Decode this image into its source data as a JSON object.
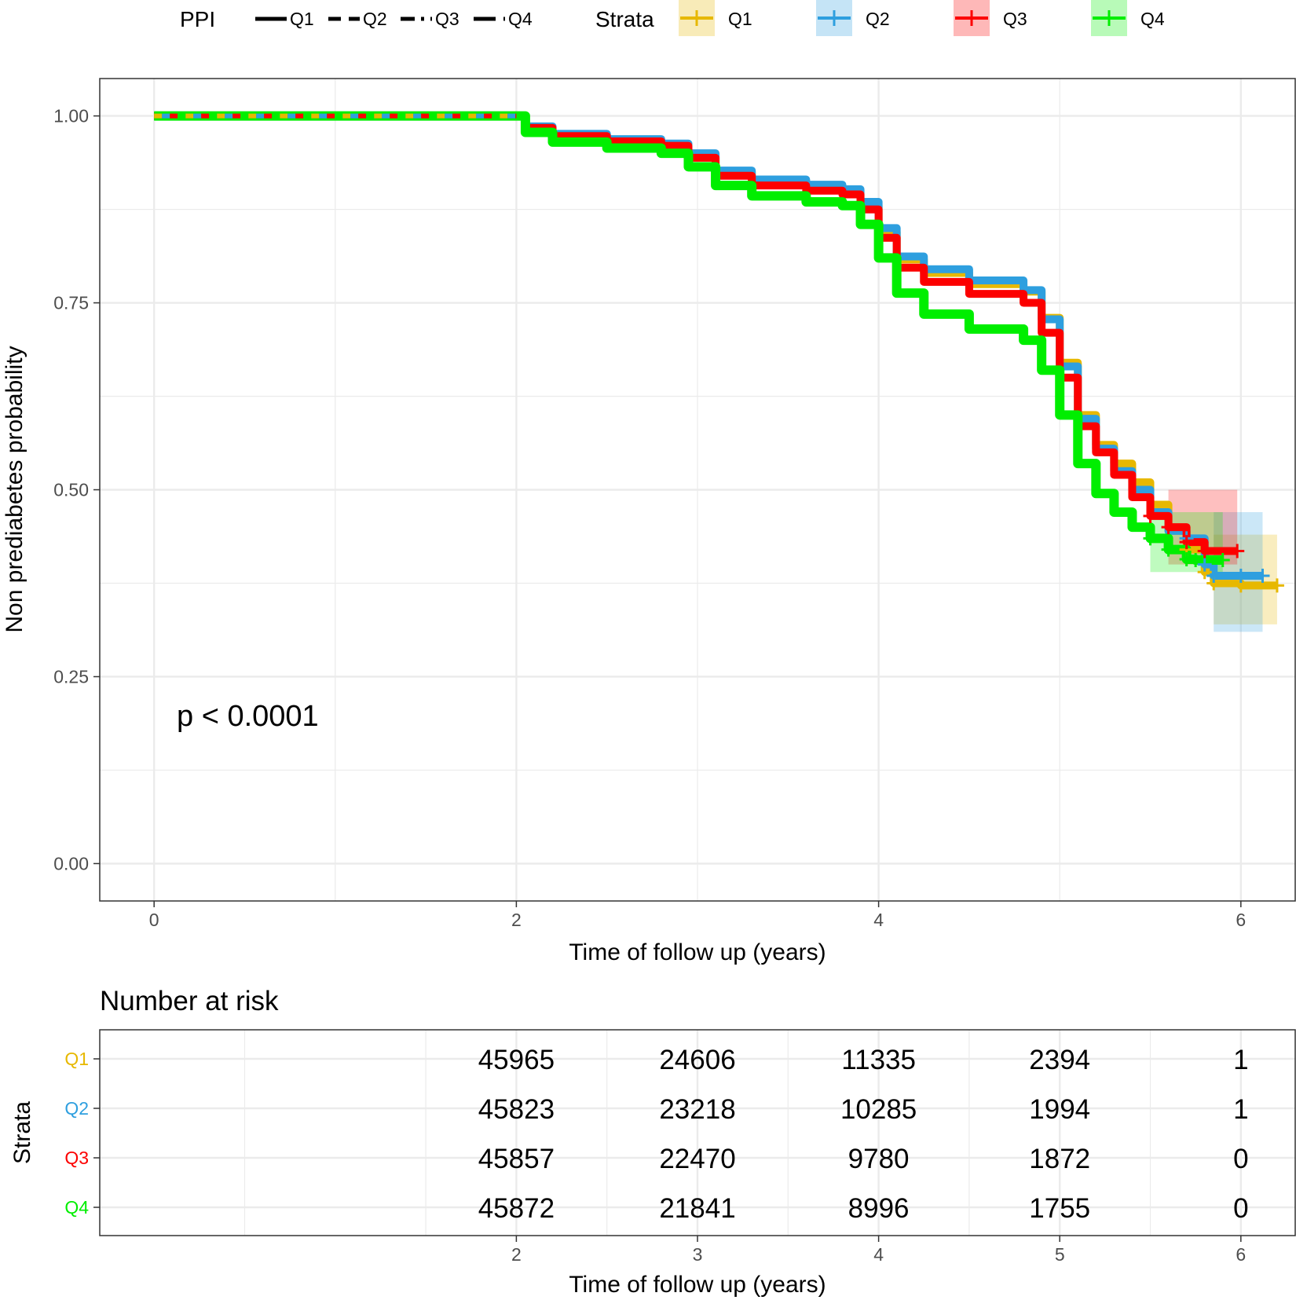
{
  "colors": {
    "Q1": "#e7b800",
    "Q2": "#2e9fdf",
    "Q3": "#fc0000",
    "Q4": "#00ee00",
    "grid": "#ebebeb",
    "axis": "#4d4d4d",
    "frame": "#333333"
  },
  "legend": {
    "linetype_title": "PPI",
    "linetype_items": [
      "Q1",
      "Q2",
      "Q3",
      "Q4"
    ],
    "color_title": "Strata",
    "color_items": [
      "Q1",
      "Q2",
      "Q3",
      "Q4"
    ]
  },
  "annotation": {
    "pvalue": "p < 0.0001"
  },
  "chart_data": [
    {
      "type": "line",
      "subtype": "kaplan-meier",
      "title": "",
      "xlabel": "Time of follow up (years)",
      "ylabel": "Non prediabetes probability",
      "xlim": [
        -0.3,
        6.3
      ],
      "ylim": [
        -0.05,
        1.05
      ],
      "xticks": [
        0,
        2,
        4,
        6
      ],
      "xtick_labels": [
        "0",
        "2",
        "4",
        "6"
      ],
      "yticks": [
        0,
        0.25,
        0.5,
        0.75,
        1.0
      ],
      "ytick_labels": [
        "0.00",
        "0.25",
        "0.50",
        "0.75",
        "1.00"
      ],
      "grid": true,
      "series": [
        {
          "name": "Q1",
          "linetype": "solid",
          "x": [
            0,
            2.0,
            2.05,
            2.2,
            2.5,
            2.8,
            2.95,
            3.1,
            3.3,
            3.6,
            3.8,
            3.9,
            4.0,
            4.1,
            4.25,
            4.5,
            4.8,
            4.9,
            5.0,
            5.1,
            5.2,
            5.3,
            5.4,
            5.5,
            5.6,
            5.7,
            5.8,
            5.85,
            6.0,
            6.2
          ],
          "y": [
            1.0,
            1.0,
            0.985,
            0.975,
            0.968,
            0.962,
            0.948,
            0.925,
            0.913,
            0.905,
            0.9,
            0.88,
            0.845,
            0.808,
            0.79,
            0.775,
            0.765,
            0.73,
            0.67,
            0.6,
            0.56,
            0.535,
            0.51,
            0.48,
            0.445,
            0.42,
            0.39,
            0.375,
            0.372,
            0.372
          ],
          "ci_x": [
            5.85,
            6.2
          ],
          "ci_lower": [
            0.32,
            0.31
          ],
          "ci_upper": [
            0.44,
            0.45
          ]
        },
        {
          "name": "Q2",
          "linetype": "dashed",
          "x": [
            0,
            2.0,
            2.05,
            2.2,
            2.5,
            2.8,
            2.95,
            3.1,
            3.3,
            3.6,
            3.8,
            3.9,
            4.0,
            4.1,
            4.25,
            4.5,
            4.8,
            4.9,
            5.0,
            5.1,
            5.2,
            5.3,
            5.4,
            5.5,
            5.6,
            5.7,
            5.8,
            5.85,
            6.0,
            6.12
          ],
          "y": [
            1.0,
            1.0,
            0.986,
            0.976,
            0.969,
            0.963,
            0.95,
            0.927,
            0.915,
            0.908,
            0.902,
            0.885,
            0.85,
            0.812,
            0.795,
            0.78,
            0.767,
            0.728,
            0.665,
            0.595,
            0.555,
            0.525,
            0.5,
            0.47,
            0.445,
            0.435,
            0.4,
            0.385,
            0.385,
            0.385
          ],
          "ci_x": [
            5.85,
            6.12
          ],
          "ci_lower": [
            0.31,
            0.3
          ],
          "ci_upper": [
            0.47,
            0.48
          ]
        },
        {
          "name": "Q3",
          "linetype": "dotdash",
          "x": [
            0,
            2.0,
            2.05,
            2.2,
            2.5,
            2.8,
            2.95,
            3.1,
            3.3,
            3.6,
            3.8,
            3.9,
            4.0,
            4.1,
            4.25,
            4.5,
            4.8,
            4.9,
            5.0,
            5.1,
            5.2,
            5.3,
            5.4,
            5.5,
            5.6,
            5.7,
            5.8,
            5.98
          ],
          "y": [
            1.0,
            1.0,
            0.984,
            0.973,
            0.966,
            0.96,
            0.944,
            0.92,
            0.907,
            0.9,
            0.895,
            0.875,
            0.837,
            0.797,
            0.778,
            0.762,
            0.75,
            0.71,
            0.65,
            0.585,
            0.55,
            0.52,
            0.49,
            0.465,
            0.45,
            0.43,
            0.418,
            0.418
          ],
          "ci_x": [
            5.6,
            5.98
          ],
          "ci_lower": [
            0.4,
            0.37
          ],
          "ci_upper": [
            0.5,
            0.48
          ]
        },
        {
          "name": "Q4",
          "linetype": "longdash",
          "x": [
            0,
            2.0,
            2.05,
            2.2,
            2.5,
            2.8,
            2.95,
            3.1,
            3.3,
            3.6,
            3.8,
            3.9,
            4.0,
            4.1,
            4.25,
            4.5,
            4.8,
            4.9,
            5.0,
            5.1,
            5.2,
            5.3,
            5.4,
            5.5,
            5.6,
            5.7,
            5.75,
            5.9
          ],
          "y": [
            1.0,
            1.0,
            0.978,
            0.965,
            0.957,
            0.95,
            0.932,
            0.907,
            0.893,
            0.885,
            0.88,
            0.855,
            0.81,
            0.763,
            0.735,
            0.715,
            0.7,
            0.66,
            0.6,
            0.535,
            0.495,
            0.47,
            0.45,
            0.435,
            0.42,
            0.407,
            0.406,
            0.406
          ],
          "ci_x": [
            5.5,
            5.9
          ],
          "ci_lower": [
            0.39,
            0.37
          ],
          "ci_upper": [
            0.47,
            0.45
          ]
        }
      ]
    },
    {
      "type": "table",
      "title": "Number at risk",
      "xlabel": "Time of follow up (years)",
      "ylabel": "Strata",
      "xticks": [
        2,
        3,
        4,
        5,
        6
      ],
      "xtick_labels": [
        "2",
        "3",
        "4",
        "5",
        "6"
      ],
      "row_labels": [
        "Q1",
        "Q2",
        "Q3",
        "Q4"
      ],
      "rows": [
        {
          "strata": "Q1",
          "values": [
            "45965",
            "24606",
            "11335",
            "2394",
            "1"
          ]
        },
        {
          "strata": "Q2",
          "values": [
            "45823",
            "23218",
            "10285",
            "1994",
            "1"
          ]
        },
        {
          "strata": "Q3",
          "values": [
            "45857",
            "22470",
            "9780",
            "1872",
            "0"
          ]
        },
        {
          "strata": "Q4",
          "values": [
            "45872",
            "21841",
            "8996",
            "1755",
            "0"
          ]
        }
      ]
    }
  ]
}
